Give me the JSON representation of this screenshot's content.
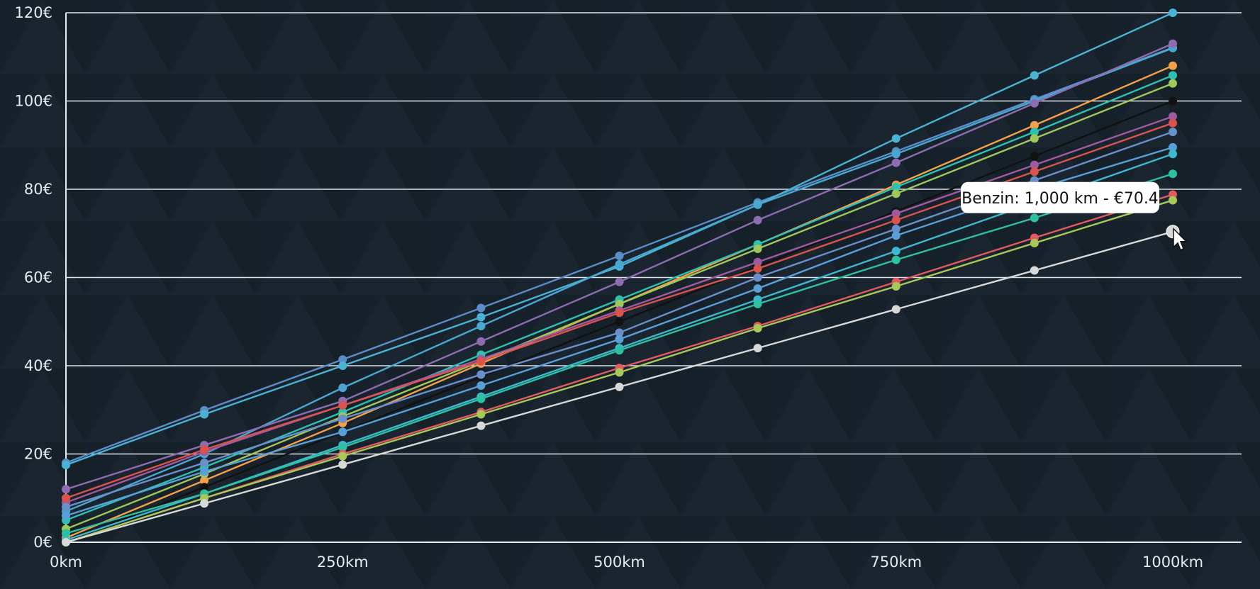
{
  "chart_data": {
    "type": "line",
    "x": [
      0,
      125,
      250,
      375,
      500,
      625,
      750,
      875,
      1000
    ],
    "x_tick_values": [
      0,
      250,
      500,
      750,
      1000
    ],
    "x_tick_labels": [
      "0km",
      "250km",
      "500km",
      "750km",
      "1000km"
    ],
    "y_tick_values": [
      0,
      20,
      40,
      60,
      80,
      100,
      120
    ],
    "y_tick_labels": [
      "0€",
      "20€",
      "40€",
      "60€",
      "80€",
      "100€",
      "120€"
    ],
    "xlim": [
      0,
      1000
    ],
    "ylim": [
      0,
      120
    ],
    "grid": "horizontal",
    "title": "",
    "xlabel": "",
    "ylabel": "",
    "series": [
      {
        "color": "#5b8ec9",
        "values": [
          18.0,
          29.9,
          41.4,
          53.1,
          64.9,
          77.0,
          88.6,
          100.4,
          112.1
        ]
      },
      {
        "color": "#4ab3d4",
        "values": [
          17.5,
          29.0,
          40.0,
          51.0,
          62.5,
          76.5,
          91.5,
          105.8,
          120.0
        ]
      },
      {
        "color": "#4aa8d0",
        "values": [
          7.0,
          20.0,
          35.0,
          49.0,
          63.0,
          76.5,
          88.0,
          100.0,
          112.0
        ]
      },
      {
        "color": "#8e6cb0",
        "values": [
          12.0,
          22.0,
          32.0,
          45.5,
          59.0,
          73.0,
          86.0,
          99.5,
          113.0
        ]
      },
      {
        "color": "#f2a04a",
        "values": [
          1.0,
          14.0,
          27.0,
          40.5,
          54.0,
          67.5,
          81.0,
          94.5,
          108.0
        ]
      },
      {
        "color": "#2ec0b0",
        "values": [
          5.0,
          17.0,
          29.5,
          42.5,
          55.0,
          67.5,
          80.5,
          93.0,
          105.8
        ]
      },
      {
        "color": "#9fc85c",
        "values": [
          3.0,
          15.5,
          28.5,
          41.0,
          54.0,
          66.5,
          79.0,
          91.5,
          104.0
        ]
      },
      {
        "color": "#111111",
        "values": [
          0.0,
          12.5,
          25.0,
          37.5,
          50.0,
          62.5,
          75.0,
          87.5,
          100.0
        ]
      },
      {
        "color": "#a05aa0",
        "values": [
          9.0,
          20.5,
          31.0,
          41.5,
          52.5,
          63.5,
          74.5,
          85.5,
          96.5
        ]
      },
      {
        "color": "#d9534f",
        "values": [
          10.0,
          21.0,
          31.0,
          41.0,
          52.0,
          62.0,
          73.0,
          84.0,
          95.0
        ]
      },
      {
        "color": "#6a8fc9",
        "values": [
          8.0,
          18.0,
          28.0,
          38.0,
          47.5,
          60.0,
          71.0,
          82.0,
          93.0
        ]
      },
      {
        "color": "#5aa0d8",
        "values": [
          6.0,
          16.0,
          25.0,
          35.5,
          46.0,
          57.5,
          69.5,
          80.0,
          89.5
        ]
      },
      {
        "color": "#3fb8cf",
        "values": [
          0.5,
          11.0,
          22.0,
          33.0,
          44.0,
          55.0,
          66.0,
          77.0,
          88.0
        ]
      },
      {
        "color": "#2ec0a0",
        "values": [
          2.0,
          11.0,
          21.5,
          32.5,
          43.5,
          54.0,
          64.0,
          73.5,
          83.5
        ]
      },
      {
        "color": "#e05a60",
        "values": [
          0.0,
          10.0,
          20.0,
          29.5,
          39.5,
          49.0,
          59.0,
          69.0,
          78.8
        ]
      },
      {
        "color": "#a8c85a",
        "values": [
          0.0,
          10.0,
          19.5,
          29.0,
          38.5,
          48.5,
          58.0,
          67.8,
          77.5
        ]
      },
      {
        "color": "#d8d8d8",
        "values": [
          0.0,
          8.8,
          17.6,
          26.4,
          35.2,
          44.0,
          52.8,
          61.6,
          70.4
        ]
      }
    ],
    "tooltip": {
      "text": "Benzin: 1,000 km - €70.4",
      "series_index": 16,
      "point_index": 8
    }
  }
}
